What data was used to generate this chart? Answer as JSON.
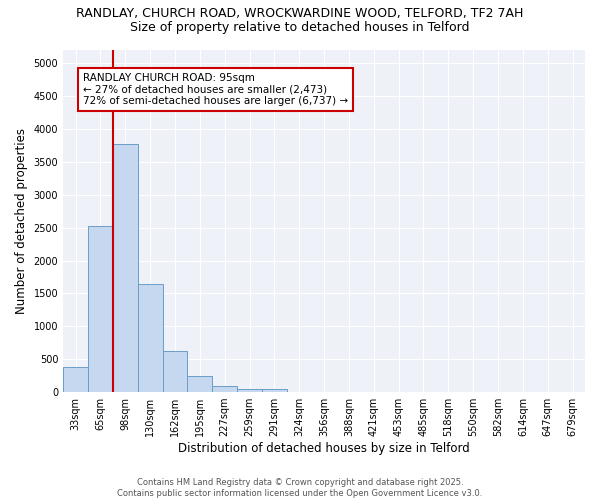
{
  "title1": "RANDLAY, CHURCH ROAD, WROCKWARDINE WOOD, TELFORD, TF2 7AH",
  "title2": "Size of property relative to detached houses in Telford",
  "xlabel": "Distribution of detached houses by size in Telford",
  "ylabel": "Number of detached properties",
  "bar_labels": [
    "33sqm",
    "65sqm",
    "98sqm",
    "130sqm",
    "162sqm",
    "195sqm",
    "227sqm",
    "259sqm",
    "291sqm",
    "324sqm",
    "356sqm",
    "388sqm",
    "421sqm",
    "453sqm",
    "485sqm",
    "518sqm",
    "550sqm",
    "582sqm",
    "614sqm",
    "647sqm",
    "679sqm"
  ],
  "bar_values": [
    380,
    2530,
    3770,
    1650,
    620,
    240,
    100,
    45,
    45,
    0,
    0,
    0,
    0,
    0,
    0,
    0,
    0,
    0,
    0,
    0,
    0
  ],
  "bar_color": "#c5d8f0",
  "bar_edge_color": "#6b9dc8",
  "vline_color": "#cc0000",
  "annotation_text": "RANDLAY CHURCH ROAD: 95sqm\n← 27% of detached houses are smaller (2,473)\n72% of semi-detached houses are larger (6,737) →",
  "annotation_box_color": "#ffffff",
  "annotation_box_edge": "#cc0000",
  "ylim": [
    0,
    5200
  ],
  "yticks": [
    0,
    500,
    1000,
    1500,
    2000,
    2500,
    3000,
    3500,
    4000,
    4500,
    5000
  ],
  "bg_color": "#eef2f8",
  "grid_color": "#ffffff",
  "footer_text": "Contains HM Land Registry data © Crown copyright and database right 2025.\nContains public sector information licensed under the Open Government Licence v3.0.",
  "title1_fontsize": 9,
  "title2_fontsize": 9,
  "tick_fontsize": 7,
  "label_fontsize": 8.5,
  "annotation_fontsize": 7.5,
  "footer_fontsize": 6
}
